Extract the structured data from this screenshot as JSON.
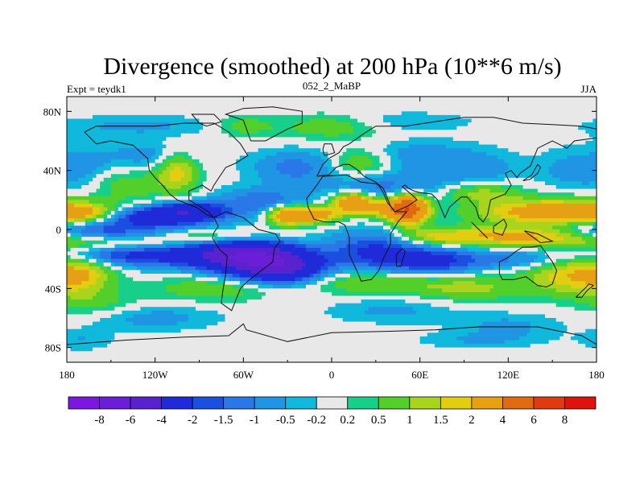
{
  "chart_data": {
    "type": "heatmap",
    "title": "Divergence (smoothed) at 200 hPa (10**6 m/s)",
    "subtitle_left": "Expt = teydk1",
    "subtitle_center": "052_2_MaBP",
    "subtitle_right": "JJA",
    "x_ticks": [
      {
        "value": -180,
        "label": "180"
      },
      {
        "value": -120,
        "label": "120W"
      },
      {
        "value": -60,
        "label": "60W"
      },
      {
        "value": 0,
        "label": "0"
      },
      {
        "value": 60,
        "label": "60E"
      },
      {
        "value": 120,
        "label": "120E"
      },
      {
        "value": 180,
        "label": "180"
      }
    ],
    "y_ticks": [
      {
        "value": 80,
        "label": "80N"
      },
      {
        "value": 40,
        "label": "40N"
      },
      {
        "value": 0,
        "label": "0"
      },
      {
        "value": -40,
        "label": "40S"
      },
      {
        "value": -80,
        "label": "80S"
      }
    ],
    "xlim": [
      -180,
      180
    ],
    "ylim": [
      -90,
      90
    ],
    "colorbar": {
      "levels": [
        "-8",
        "-6",
        "-4",
        "-2",
        "-1.5",
        "-1",
        "-0.5",
        "-0.2",
        "0.2",
        "0.5",
        "1",
        "1.5",
        "2",
        "4",
        "6",
        "8"
      ],
      "colors": [
        "#7c17e0",
        "#6a1fd6",
        "#5a22cf",
        "#1f2bd8",
        "#1b4fe0",
        "#2a78e8",
        "#1f95e3",
        "#10b8dc",
        "#e8e8e8",
        "#18cf8a",
        "#52cf2a",
        "#a8d41e",
        "#e3cd10",
        "#e79f14",
        "#e06a12",
        "#e03a10",
        "#e0120e"
      ]
    },
    "features": [
      {
        "lon": -150,
        "lat": 0,
        "sx": 35,
        "sy": 5,
        "v": -2.5
      },
      {
        "lon": -120,
        "lat": 8,
        "sx": 28,
        "sy": 5,
        "v": -3
      },
      {
        "lon": -95,
        "lat": 13,
        "sx": 18,
        "sy": 4,
        "v": -2.5
      },
      {
        "lon": -50,
        "lat": 20,
        "sx": 20,
        "sy": 6,
        "v": -1.2
      },
      {
        "lon": -30,
        "lat": 12,
        "sx": 14,
        "sy": 6,
        "v": -1.5
      },
      {
        "lon": -60,
        "lat": -18,
        "sx": 22,
        "sy": 8,
        "v": -4.5
      },
      {
        "lon": -33,
        "lat": -25,
        "sx": 20,
        "sy": 8,
        "v": -4.5
      },
      {
        "lon": -100,
        "lat": -17,
        "sx": 30,
        "sy": 6,
        "v": -2.2
      },
      {
        "lon": -150,
        "lat": -17,
        "sx": 25,
        "sy": 5,
        "v": -1.5
      },
      {
        "lon": 30,
        "lat": -15,
        "sx": 22,
        "sy": 10,
        "v": -2.2
      },
      {
        "lon": 70,
        "lat": -22,
        "sx": 20,
        "sy": 7,
        "v": -2
      },
      {
        "lon": 130,
        "lat": -20,
        "sx": 35,
        "sy": 5,
        "v": -1.2
      },
      {
        "lon": 40,
        "lat": 28,
        "sx": 30,
        "sy": 8,
        "v": -1.3
      },
      {
        "lon": -25,
        "lat": 42,
        "sx": 20,
        "sy": 8,
        "v": -1.2
      },
      {
        "lon": 60,
        "lat": 50,
        "sx": 30,
        "sy": 7,
        "v": -0.8
      },
      {
        "lon": -120,
        "lat": 50,
        "sx": 25,
        "sy": 7,
        "v": -0.8
      },
      {
        "lon": 100,
        "lat": 40,
        "sx": 20,
        "sy": 8,
        "v": -0.7
      },
      {
        "lon": 160,
        "lat": 40,
        "sx": 15,
        "sy": 10,
        "v": -0.6
      },
      {
        "lon": -130,
        "lat": 70,
        "sx": 40,
        "sy": 5,
        "v": -0.6
      },
      {
        "lon": 40,
        "lat": 73,
        "sx": 40,
        "sy": 5,
        "v": -0.5
      },
      {
        "lon": -120,
        "lat": -60,
        "sx": 30,
        "sy": 6,
        "v": -0.7
      },
      {
        "lon": 40,
        "lat": -55,
        "sx": 30,
        "sy": 6,
        "v": -0.6
      },
      {
        "lon": 120,
        "lat": -65,
        "sx": 25,
        "sy": 6,
        "v": -0.6
      },
      {
        "lon": -170,
        "lat": 40,
        "sx": 15,
        "sy": 12,
        "v": -0.7
      },
      {
        "lon": -170,
        "lat": -75,
        "sx": 15,
        "sy": 5,
        "v": -0.5
      },
      {
        "lon": 100,
        "lat": -75,
        "sx": 30,
        "sy": 4,
        "v": -0.5
      },
      {
        "lon": -30,
        "lat": 10,
        "sx": 10,
        "sy": 5,
        "v": 4.5
      },
      {
        "lon": -10,
        "lat": 10,
        "sx": 10,
        "sy": 4,
        "v": 3
      },
      {
        "lon": 15,
        "lat": 18,
        "sx": 10,
        "sy": 5,
        "v": 3.5
      },
      {
        "lon": 52,
        "lat": 14,
        "sx": 9,
        "sy": 7,
        "v": 5
      },
      {
        "lon": 40,
        "lat": 14,
        "sx": 12,
        "sy": 5,
        "v": 2
      },
      {
        "lon": 150,
        "lat": 12,
        "sx": 35,
        "sy": 6,
        "v": 2.8
      },
      {
        "lon": -170,
        "lat": 10,
        "sx": 20,
        "sy": 5,
        "v": 2
      },
      {
        "lon": -130,
        "lat": 2,
        "sx": 25,
        "sy": 4,
        "v": 1.3
      },
      {
        "lon": 130,
        "lat": -5,
        "sx": 40,
        "sy": 5,
        "v": 2.2
      },
      {
        "lon": 70,
        "lat": -5,
        "sx": 20,
        "sy": 4,
        "v": 1.3
      },
      {
        "lon": -80,
        "lat": -5,
        "sx": 30,
        "sy": 4,
        "v": 1.3
      },
      {
        "lon": -140,
        "lat": -10,
        "sx": 30,
        "sy": 4,
        "v": 1
      },
      {
        "lon": -170,
        "lat": -30,
        "sx": 15,
        "sy": 10,
        "v": 1.8
      },
      {
        "lon": 160,
        "lat": -30,
        "sx": 20,
        "sy": 10,
        "v": 1.8
      },
      {
        "lon": 30,
        "lat": -35,
        "sx": 40,
        "sy": 6,
        "v": 1.2
      },
      {
        "lon": -80,
        "lat": -40,
        "sx": 30,
        "sy": 6,
        "v": 0.9
      },
      {
        "lon": -105,
        "lat": 40,
        "sx": 10,
        "sy": 10,
        "v": 1.8
      },
      {
        "lon": -140,
        "lat": 30,
        "sx": 20,
        "sy": 8,
        "v": 0.8
      },
      {
        "lon": 20,
        "lat": 45,
        "sx": 15,
        "sy": 7,
        "v": 1.2
      },
      {
        "lon": 100,
        "lat": 25,
        "sx": 20,
        "sy": 5,
        "v": 1.3
      },
      {
        "lon": 0,
        "lat": 70,
        "sx": 25,
        "sy": 6,
        "v": 1
      },
      {
        "lon": -60,
        "lat": 70,
        "sx": 15,
        "sy": 5,
        "v": 0.8
      },
      {
        "lon": 95,
        "lat": -40,
        "sx": 25,
        "sy": 6,
        "v": 1
      },
      {
        "lon": -160,
        "lat": -50,
        "sx": 20,
        "sy": 6,
        "v": 0.6
      }
    ],
    "coastlines": [
      [
        [
          -168,
          66
        ],
        [
          -160,
          70
        ],
        [
          -140,
          70
        ],
        [
          -120,
          70
        ],
        [
          -100,
          72
        ],
        [
          -80,
          72
        ],
        [
          -70,
          66
        ],
        [
          -62,
          58
        ],
        [
          -57,
          50
        ],
        [
          -65,
          45
        ],
        [
          -72,
          42
        ],
        [
          -76,
          36
        ],
        [
          -80,
          30
        ],
        [
          -82,
          26
        ],
        [
          -88,
          30
        ],
        [
          -97,
          26
        ],
        [
          -97,
          20
        ],
        [
          -90,
          16
        ],
        [
          -84,
          12
        ],
        [
          -80,
          8
        ],
        [
          -85,
          10
        ],
        [
          -92,
          15
        ],
        [
          -105,
          20
        ],
        [
          -110,
          24
        ],
        [
          -115,
          30
        ],
        [
          -120,
          35
        ],
        [
          -124,
          40
        ],
        [
          -125,
          48
        ],
        [
          -135,
          57
        ],
        [
          -150,
          60
        ],
        [
          -160,
          58
        ],
        [
          -168,
          66
        ]
      ],
      [
        [
          -80,
          8
        ],
        [
          -77,
          2
        ],
        [
          -80,
          -2
        ],
        [
          -81,
          -6
        ],
        [
          -76,
          -14
        ],
        [
          -71,
          -18
        ],
        [
          -72,
          -30
        ],
        [
          -74,
          -42
        ],
        [
          -75,
          -50
        ],
        [
          -68,
          -55
        ],
        [
          -66,
          -50
        ],
        [
          -62,
          -40
        ],
        [
          -57,
          -35
        ],
        [
          -48,
          -28
        ],
        [
          -40,
          -22
        ],
        [
          -39,
          -13
        ],
        [
          -35,
          -8
        ],
        [
          -38,
          -3
        ],
        [
          -50,
          0
        ],
        [
          -60,
          8
        ],
        [
          -72,
          12
        ],
        [
          -80,
          8
        ]
      ],
      [
        [
          -10,
          36
        ],
        [
          -6,
          44
        ],
        [
          -2,
          48
        ],
        [
          5,
          52
        ],
        [
          8,
          56
        ],
        [
          12,
          58
        ],
        [
          22,
          65
        ],
        [
          30,
          70
        ],
        [
          50,
          70
        ],
        [
          70,
          73
        ],
        [
          90,
          76
        ],
        [
          110,
          76
        ],
        [
          130,
          72
        ],
        [
          150,
          71
        ],
        [
          170,
          70
        ],
        [
          180,
          68
        ],
        [
          180,
          62
        ],
        [
          165,
          60
        ],
        [
          160,
          55
        ],
        [
          150,
          60
        ],
        [
          140,
          55
        ],
        [
          138,
          50
        ],
        [
          135,
          43
        ],
        [
          128,
          38
        ],
        [
          126,
          35
        ],
        [
          122,
          40
        ],
        [
          118,
          38
        ],
        [
          122,
          30
        ],
        [
          118,
          24
        ],
        [
          108,
          20
        ],
        [
          106,
          10
        ],
        [
          103,
          5
        ],
        [
          100,
          8
        ],
        [
          98,
          15
        ],
        [
          92,
          22
        ],
        [
          88,
          22
        ],
        [
          80,
          15
        ],
        [
          77,
          8
        ],
        [
          72,
          20
        ],
        [
          68,
          24
        ],
        [
          60,
          25
        ],
        [
          56,
          26
        ],
        [
          52,
          28
        ],
        [
          50,
          30
        ],
        [
          48,
          29
        ],
        [
          55,
          23
        ],
        [
          58,
          20
        ],
        [
          52,
          16
        ],
        [
          43,
          12
        ],
        [
          40,
          16
        ],
        [
          35,
          28
        ],
        [
          30,
          32
        ],
        [
          22,
          36
        ],
        [
          18,
          40
        ],
        [
          12,
          44
        ],
        [
          8,
          44
        ],
        [
          3,
          42
        ],
        [
          -2,
          37
        ],
        [
          -10,
          36
        ]
      ],
      [
        [
          -16,
          15
        ],
        [
          -17,
          21
        ],
        [
          -10,
          30
        ],
        [
          -6,
          36
        ],
        [
          10,
          37
        ],
        [
          20,
          32
        ],
        [
          30,
          31
        ],
        [
          32,
          30
        ],
        [
          35,
          25
        ],
        [
          38,
          18
        ],
        [
          43,
          12
        ],
        [
          51,
          12
        ],
        [
          45,
          5
        ],
        [
          40,
          -3
        ],
        [
          40,
          -10
        ],
        [
          35,
          -20
        ],
        [
          32,
          -28
        ],
        [
          27,
          -34
        ],
        [
          20,
          -35
        ],
        [
          18,
          -30
        ],
        [
          12,
          -17
        ],
        [
          12,
          -5
        ],
        [
          9,
          3
        ],
        [
          5,
          5
        ],
        [
          -5,
          5
        ],
        [
          -12,
          7
        ],
        [
          -16,
          15
        ]
      ],
      [
        [
          114,
          -22
        ],
        [
          114,
          -30
        ],
        [
          116,
          -34
        ],
        [
          124,
          -34
        ],
        [
          132,
          -32
        ],
        [
          140,
          -38
        ],
        [
          146,
          -39
        ],
        [
          150,
          -37
        ],
        [
          153,
          -28
        ],
        [
          150,
          -22
        ],
        [
          145,
          -15
        ],
        [
          142,
          -11
        ],
        [
          136,
          -12
        ],
        [
          130,
          -12
        ],
        [
          125,
          -15
        ],
        [
          120,
          -19
        ],
        [
          114,
          -22
        ]
      ],
      [
        [
          -180,
          -78
        ],
        [
          -140,
          -75
        ],
        [
          -100,
          -73
        ],
        [
          -70,
          -72
        ],
        [
          -60,
          -64
        ],
        [
          -58,
          -68
        ],
        [
          -30,
          -76
        ],
        [
          0,
          -70
        ],
        [
          40,
          -69
        ],
        [
          70,
          -68
        ],
        [
          100,
          -66
        ],
        [
          140,
          -66
        ],
        [
          170,
          -72
        ],
        [
          180,
          -78
        ]
      ],
      [
        [
          -55,
          60
        ],
        [
          -45,
          60
        ],
        [
          -30,
          68
        ],
        [
          -20,
          72
        ],
        [
          -20,
          80
        ],
        [
          -40,
          83
        ],
        [
          -60,
          82
        ],
        [
          -72,
          78
        ],
        [
          -60,
          74
        ],
        [
          -55,
          60
        ]
      ],
      [
        [
          44,
          -25
        ],
        [
          47,
          -25
        ],
        [
          50,
          -15
        ],
        [
          48,
          -13
        ],
        [
          44,
          -17
        ],
        [
          44,
          -25
        ]
      ],
      [
        [
          -85,
          70
        ],
        [
          -75,
          73
        ],
        [
          -80,
          78
        ],
        [
          -95,
          78
        ],
        [
          -90,
          72
        ],
        [
          -85,
          70
        ]
      ],
      [
        [
          -5,
          50
        ],
        [
          2,
          52
        ],
        [
          0,
          58
        ],
        [
          -5,
          58
        ],
        [
          -6,
          54
        ],
        [
          -5,
          50
        ]
      ],
      [
        [
          130,
          33
        ],
        [
          135,
          34
        ],
        [
          140,
          38
        ],
        [
          142,
          42
        ],
        [
          140,
          44
        ],
        [
          136,
          37
        ],
        [
          130,
          33
        ]
      ],
      [
        [
          95,
          5
        ],
        [
          105,
          -5
        ],
        [
          106,
          -6
        ],
        [
          100,
          0
        ],
        [
          95,
          5
        ]
      ],
      [
        [
          110,
          2
        ],
        [
          117,
          7
        ],
        [
          119,
          3
        ],
        [
          116,
          -4
        ],
        [
          110,
          -2
        ],
        [
          110,
          2
        ]
      ],
      [
        [
          131,
          -1
        ],
        [
          140,
          -3
        ],
        [
          150,
          -8
        ],
        [
          142,
          -9
        ],
        [
          135,
          -4
        ],
        [
          131,
          -1
        ]
      ],
      [
        [
          166,
          -46
        ],
        [
          172,
          -40
        ],
        [
          175,
          -37
        ],
        [
          178,
          -38
        ],
        [
          174,
          -41
        ],
        [
          170,
          -46
        ],
        [
          166,
          -46
        ]
      ]
    ]
  }
}
